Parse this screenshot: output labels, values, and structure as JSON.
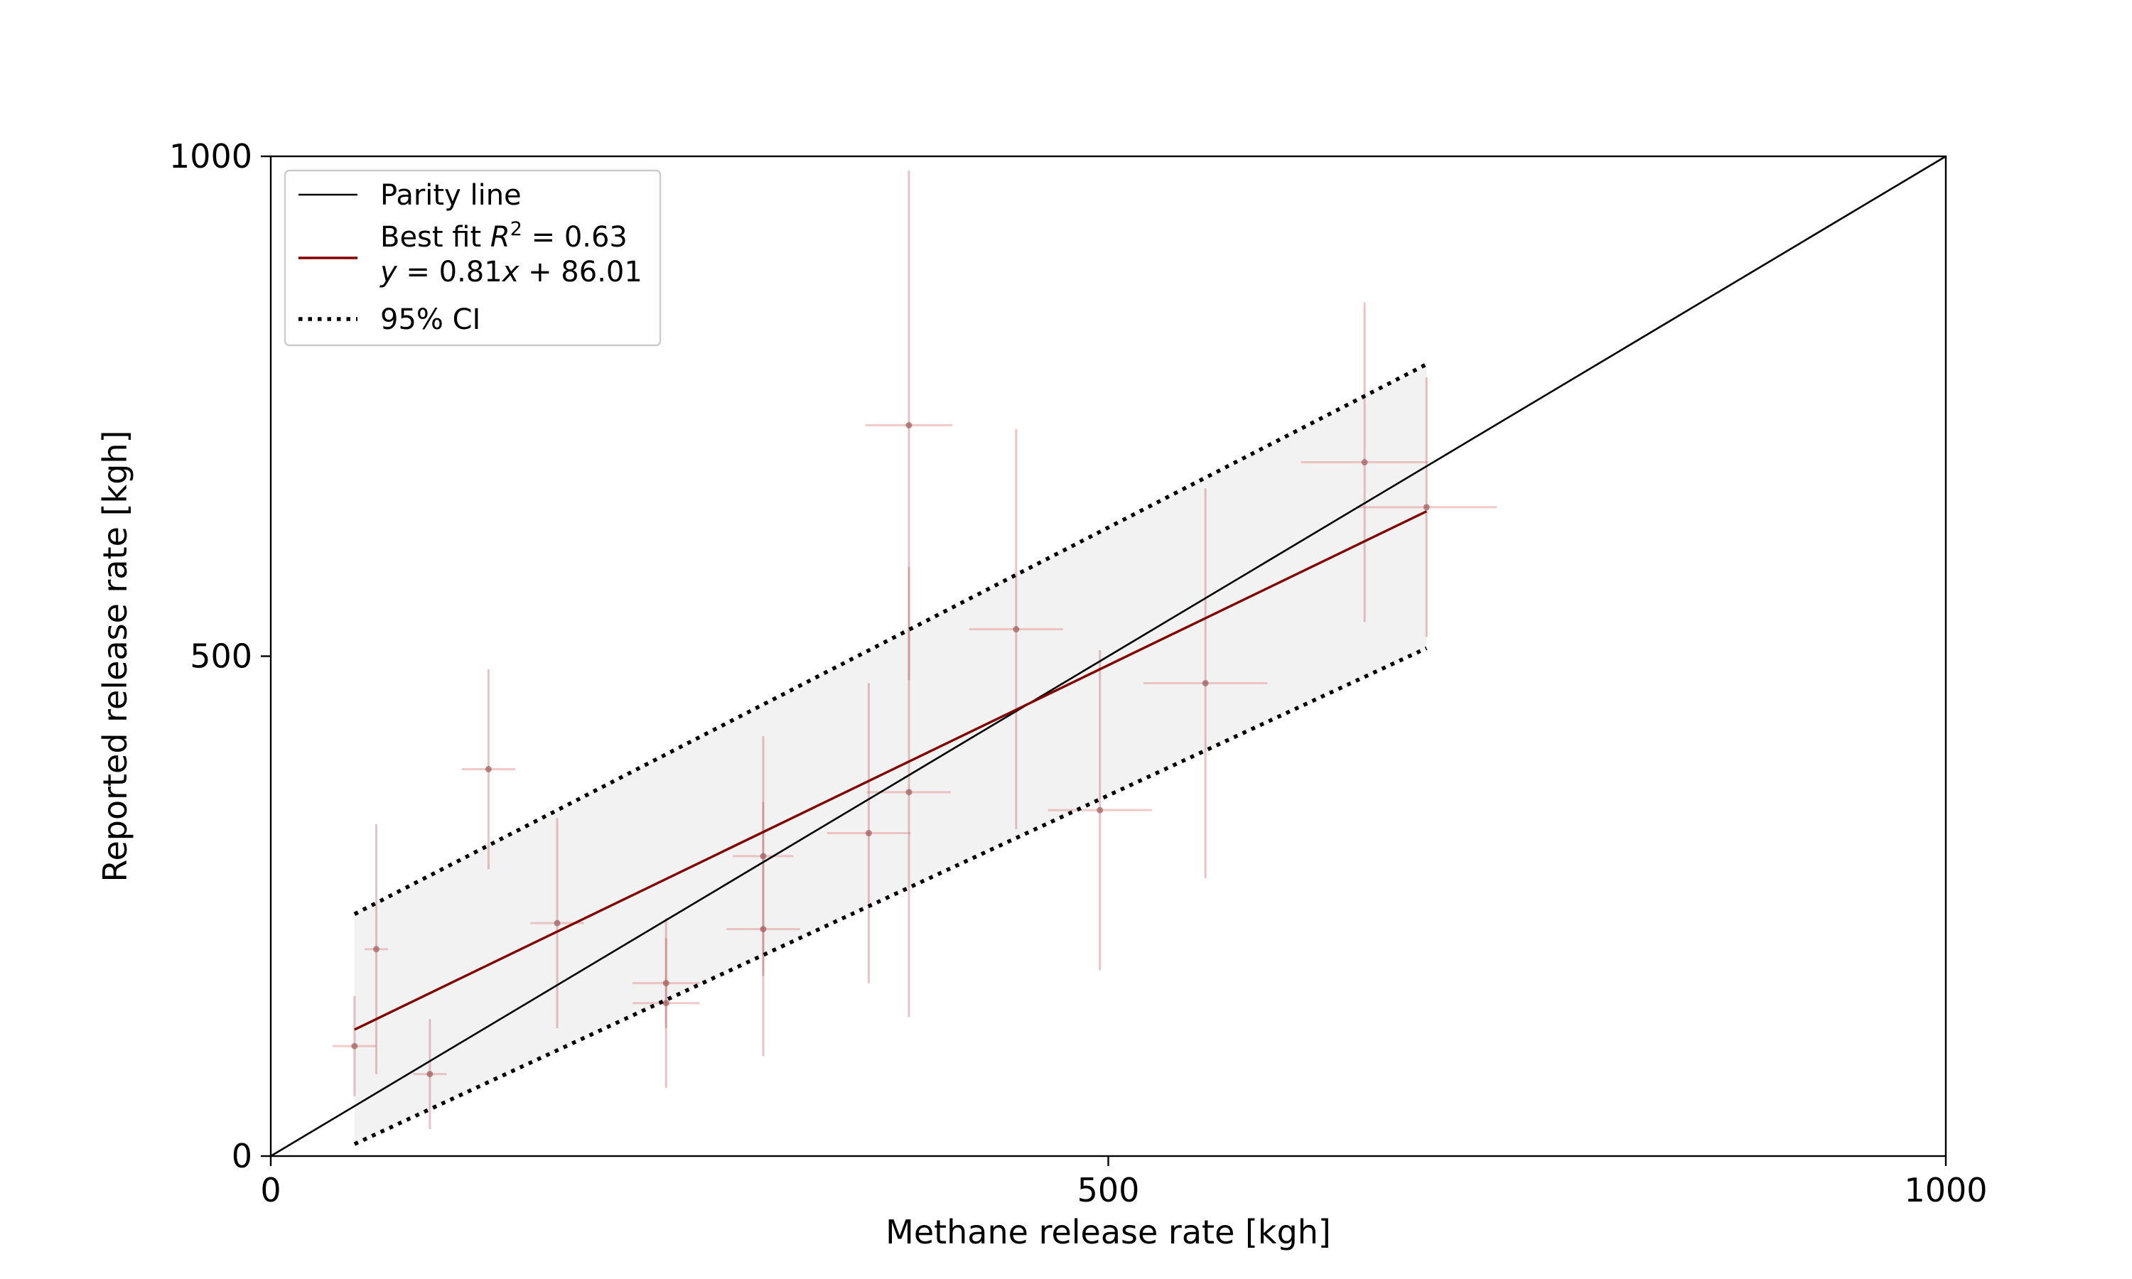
{
  "chart_data": {
    "type": "scatter",
    "xlabel": "Methane release rate [kgh]",
    "ylabel": "Reported release rate [kgh]",
    "xlim": [
      0,
      1000
    ],
    "ylim": [
      0,
      1000
    ],
    "xticks": [
      0,
      500,
      1000
    ],
    "yticks": [
      0,
      500,
      1000
    ],
    "xtick_labels": [
      "0",
      "500",
      "1000"
    ],
    "ytick_labels": [
      "0",
      "500",
      "1000"
    ],
    "grid": false,
    "legend": {
      "placement": "top-left",
      "parity": "Parity line",
      "fit_line1_prefix": "Best fit ",
      "fit_line1_R": "R",
      "fit_line1_sup": "2",
      "fit_line1_suffix": " = 0.63",
      "fit_line2_y": "y",
      "fit_line2_mid": " = 0.81",
      "fit_line2_x": "x",
      "fit_line2_suffix": " + 86.01",
      "ci": "95% CI"
    },
    "parity_line": {
      "x": [
        0,
        1000
      ],
      "y": [
        0,
        1000
      ]
    },
    "best_fit": {
      "slope": 0.81,
      "intercept": 86.01,
      "r2": 0.63,
      "x_range": [
        50,
        690
      ]
    },
    "ci95": {
      "x": [
        50,
        690
      ],
      "upper": [
        242,
        792
      ],
      "lower": [
        12,
        508
      ]
    },
    "points": [
      {
        "x": 50,
        "y": 110,
        "xerr": 13,
        "yerr": 50
      },
      {
        "x": 63,
        "y": 207,
        "xerr": 7,
        "yerr": 125
      },
      {
        "x": 95,
        "y": 82,
        "xerr": 10,
        "yerr": 55
      },
      {
        "x": 130,
        "y": 387,
        "xerr": 16,
        "yerr": 100
      },
      {
        "x": 171,
        "y": 233,
        "xerr": 16,
        "yerr": 105
      },
      {
        "x": 236,
        "y": 173,
        "xerr": 20,
        "yerr": 45
      },
      {
        "x": 236,
        "y": 153,
        "xerr": 20,
        "yerr": 85
      },
      {
        "x": 294,
        "y": 300,
        "xerr": 18,
        "yerr": 120
      },
      {
        "x": 294,
        "y": 227,
        "xerr": 22,
        "yerr": 127
      },
      {
        "x": 357,
        "y": 323,
        "xerr": 25,
        "yerr": 150
      },
      {
        "x": 381,
        "y": 731,
        "xerr": 26,
        "yerr": 255
      },
      {
        "x": 381,
        "y": 364,
        "xerr": 25,
        "yerr": 225
      },
      {
        "x": 445,
        "y": 527,
        "xerr": 28,
        "yerr": 200
      },
      {
        "x": 495,
        "y": 346,
        "xerr": 31,
        "yerr": 160
      },
      {
        "x": 558,
        "y": 473,
        "xerr": 37,
        "yerr": 195
      },
      {
        "x": 653,
        "y": 694,
        "xerr": 38,
        "yerr": 160
      },
      {
        "x": 690,
        "y": 649,
        "xerr": 42,
        "yerr": 130
      }
    ]
  }
}
